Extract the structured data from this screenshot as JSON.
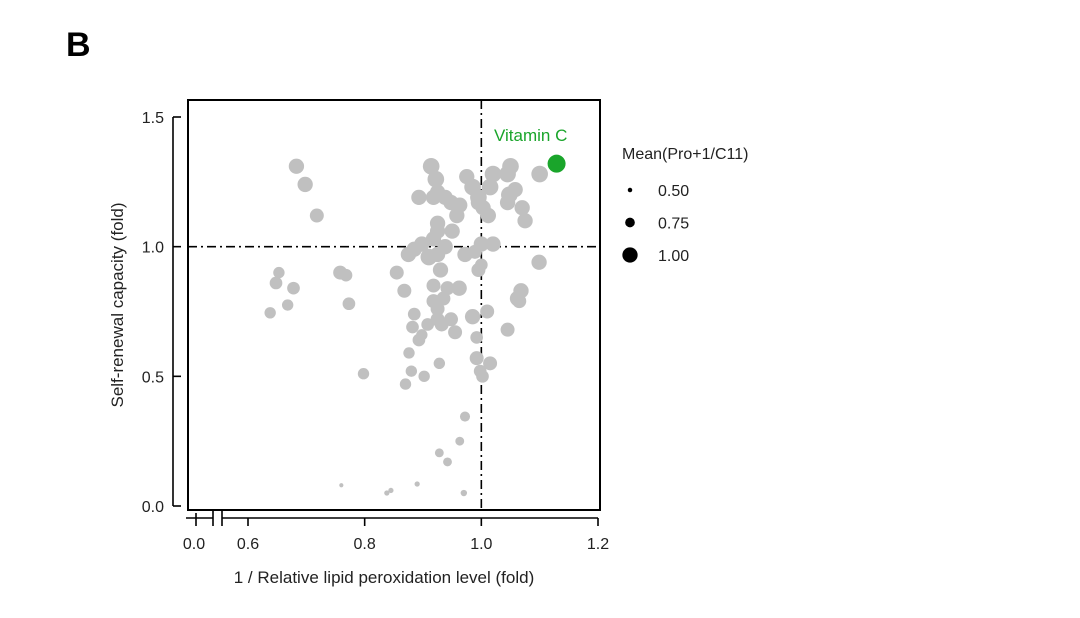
{
  "panel_label": "B",
  "chart_data": {
    "type": "scatter",
    "xlabel": "1 / Relative lipid peroxidation level (fold)",
    "ylabel": "Self-renewal capacity (fold)",
    "xlim": [
      0.55,
      1.2
    ],
    "ylim": [
      0.0,
      1.5
    ],
    "x_ticks": [
      0.6,
      0.8,
      1.0,
      1.2
    ],
    "x_tick_labels": [
      "0.6",
      "0.8",
      "1.0",
      "1.2"
    ],
    "x_break_tick": {
      "value": 0.0,
      "label": "0.0"
    },
    "y_ticks": [
      0.0,
      0.5,
      1.0,
      1.5
    ],
    "y_tick_labels": [
      "0.0",
      "0.5",
      "1.0",
      "1.5"
    ],
    "reference_lines": {
      "x": 1.0,
      "y": 1.0,
      "style": "dash-dot"
    },
    "point_color": "#c0c0c0",
    "highlight_color": "#1aa52b",
    "highlight": {
      "label": "Vitamin C",
      "x": 1.129,
      "y": 1.32,
      "size": 1.0
    },
    "legend": {
      "title": "Mean(Pro+1/C11)",
      "entries": [
        {
          "label": "0.50",
          "value": 0.5
        },
        {
          "label": "0.75",
          "value": 0.75
        },
        {
          "label": "1.00",
          "value": 1.0
        }
      ]
    },
    "series": [
      {
        "name": "compounds",
        "points": [
          [
            0.683,
            1.31,
            0.9
          ],
          [
            0.698,
            1.24,
            0.9
          ],
          [
            0.718,
            1.12,
            0.85
          ],
          [
            0.648,
            0.86,
            0.8
          ],
          [
            0.653,
            0.9,
            0.75
          ],
          [
            0.638,
            0.745,
            0.75
          ],
          [
            0.668,
            0.775,
            0.75
          ],
          [
            0.678,
            0.84,
            0.8
          ],
          [
            0.758,
            0.9,
            0.85
          ],
          [
            0.768,
            0.89,
            0.8
          ],
          [
            0.773,
            0.78,
            0.8
          ],
          [
            0.798,
            0.51,
            0.75
          ],
          [
            0.76,
            0.08,
            0.45
          ],
          [
            0.838,
            0.05,
            0.5
          ],
          [
            0.845,
            0.06,
            0.5
          ],
          [
            0.89,
            0.085,
            0.5
          ],
          [
            0.97,
            0.05,
            0.55
          ],
          [
            0.928,
            0.205,
            0.65
          ],
          [
            0.942,
            0.17,
            0.65
          ],
          [
            0.963,
            0.25,
            0.65
          ],
          [
            0.972,
            0.345,
            0.7
          ],
          [
            0.87,
            0.47,
            0.75
          ],
          [
            0.902,
            0.5,
            0.75
          ],
          [
            0.876,
            0.59,
            0.75
          ],
          [
            0.88,
            0.52,
            0.75
          ],
          [
            0.893,
            0.64,
            0.8
          ],
          [
            0.908,
            0.7,
            0.8
          ],
          [
            0.925,
            0.72,
            0.85
          ],
          [
            0.932,
            0.7,
            0.85
          ],
          [
            0.898,
            0.66,
            0.75
          ],
          [
            0.928,
            0.55,
            0.75
          ],
          [
            0.948,
            0.72,
            0.85
          ],
          [
            0.955,
            0.67,
            0.85
          ],
          [
            0.985,
            0.73,
            0.9
          ],
          [
            0.992,
            0.57,
            0.85
          ],
          [
            1.002,
            0.5,
            0.8
          ],
          [
            1.015,
            0.55,
            0.85
          ],
          [
            0.998,
            0.52,
            0.8
          ],
          [
            0.992,
            0.65,
            0.8
          ],
          [
            1.01,
            0.75,
            0.85
          ],
          [
            1.045,
            0.68,
            0.85
          ],
          [
            1.062,
            0.8,
            0.9
          ],
          [
            1.068,
            0.83,
            0.9
          ],
          [
            1.065,
            0.79,
            0.85
          ],
          [
            1.099,
            0.94,
            0.9
          ],
          [
            0.855,
            0.9,
            0.85
          ],
          [
            0.868,
            0.83,
            0.85
          ],
          [
            0.885,
            0.74,
            0.8
          ],
          [
            0.882,
            0.69,
            0.8
          ],
          [
            0.918,
            0.79,
            0.85
          ],
          [
            0.918,
            0.85,
            0.85
          ],
          [
            0.925,
            0.76,
            0.85
          ],
          [
            0.942,
            0.84,
            0.85
          ],
          [
            0.935,
            0.8,
            0.85
          ],
          [
            0.962,
            0.84,
            0.9
          ],
          [
            0.972,
            0.97,
            0.9
          ],
          [
            0.989,
            0.98,
            0.85
          ],
          [
            0.995,
            0.91,
            0.85
          ],
          [
            1.0,
            0.93,
            0.8
          ],
          [
            0.875,
            0.97,
            0.9
          ],
          [
            0.885,
            0.99,
            0.9
          ],
          [
            0.898,
            1.01,
            0.9
          ],
          [
            0.91,
            0.96,
            0.95
          ],
          [
            0.93,
            0.91,
            0.9
          ],
          [
            0.925,
            0.97,
            0.9
          ],
          [
            0.938,
            1.0,
            0.9
          ],
          [
            0.918,
            1.03,
            0.9
          ],
          [
            0.925,
            1.06,
            0.9
          ],
          [
            0.925,
            1.09,
            0.9
          ],
          [
            0.95,
            1.06,
            0.9
          ],
          [
            0.958,
            1.12,
            0.9
          ],
          [
            0.948,
            1.17,
            0.9
          ],
          [
            0.963,
            1.16,
            0.9
          ],
          [
            0.938,
            1.19,
            0.9
          ],
          [
            0.918,
            1.19,
            0.9
          ],
          [
            0.925,
            1.21,
            0.9
          ],
          [
            0.893,
            1.19,
            0.9
          ],
          [
            0.914,
            1.31,
            0.95
          ],
          [
            0.922,
            1.26,
            0.95
          ],
          [
            0.975,
            1.27,
            0.9
          ],
          [
            0.985,
            1.23,
            0.95
          ],
          [
            0.995,
            1.19,
            0.95
          ],
          [
            0.995,
            1.17,
            0.9
          ],
          [
            1.003,
            1.15,
            0.9
          ],
          [
            1.015,
            1.23,
            0.95
          ],
          [
            1.02,
            1.28,
            0.95
          ],
          [
            1.012,
            1.12,
            0.9
          ],
          [
            1.02,
            1.01,
            0.9
          ],
          [
            1.0,
            1.01,
            0.9
          ],
          [
            1.045,
            1.28,
            0.95
          ],
          [
            1.05,
            1.31,
            0.95
          ],
          [
            1.048,
            1.2,
            0.95
          ],
          [
            1.058,
            1.22,
            0.9
          ],
          [
            1.045,
            1.17,
            0.9
          ],
          [
            1.07,
            1.15,
            0.9
          ],
          [
            1.075,
            1.1,
            0.9
          ],
          [
            1.1,
            1.28,
            0.95
          ]
        ]
      }
    ]
  }
}
